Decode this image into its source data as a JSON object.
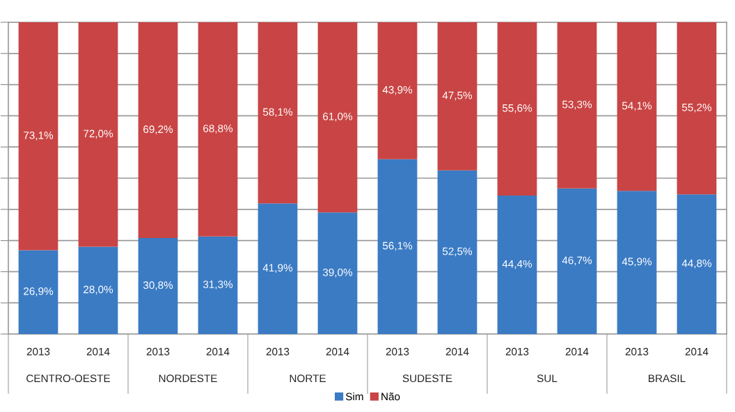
{
  "chart_data": {
    "type": "bar",
    "stacked": true,
    "categories": [
      "2013",
      "2014",
      "2013",
      "2014",
      "2013",
      "2014",
      "2013",
      "2014",
      "2013",
      "2014",
      "2013",
      "2014"
    ],
    "series": [
      {
        "name": "Sim",
        "color": "#3b7bc4",
        "values": [
          26.9,
          28.0,
          30.8,
          31.3,
          41.9,
          39.0,
          56.1,
          52.5,
          44.4,
          46.7,
          45.9,
          44.8
        ],
        "value_labels": [
          "26,9%",
          "28,0%",
          "30,8%",
          "31,3%",
          "41,9%",
          "39,0%",
          "56,1%",
          "52,5%",
          "44,4%",
          "46,7%",
          "45,9%",
          "44,8%"
        ]
      },
      {
        "name": "Não",
        "color": "#c94444",
        "values": [
          73.1,
          72.0,
          69.2,
          68.8,
          58.1,
          61.0,
          43.9,
          47.5,
          55.6,
          53.3,
          54.1,
          55.2
        ],
        "value_labels": [
          "73,1%",
          "72,0%",
          "69,2%",
          "68,8%",
          "58,1%",
          "61,0%",
          "43,9%",
          "47,5%",
          "55,6%",
          "53,3%",
          "54,1%",
          "55,2%"
        ]
      }
    ],
    "annotations": [
      "CENTRO-OESTE",
      "NORDESTE",
      "NORTE",
      "SUDESTE",
      "SUL",
      "BRASIL"
    ],
    "ylim": [
      0,
      100
    ],
    "yticks": [
      {
        "value": 0,
        "label": null
      },
      {
        "value": 10,
        "label": null
      },
      {
        "value": 20,
        "label": null
      },
      {
        "value": 30,
        "label": null
      },
      {
        "value": 40,
        "label": null
      },
      {
        "value": 50,
        "label": null
      },
      {
        "value": 60,
        "label": null
      },
      {
        "value": 70,
        "label": null
      },
      {
        "value": 80,
        "label": null
      },
      {
        "value": 90,
        "label": null
      },
      {
        "value": 100,
        "label": null
      }
    ],
    "grid": "y",
    "legend": "bottom",
    "tick_labels": "x"
  }
}
